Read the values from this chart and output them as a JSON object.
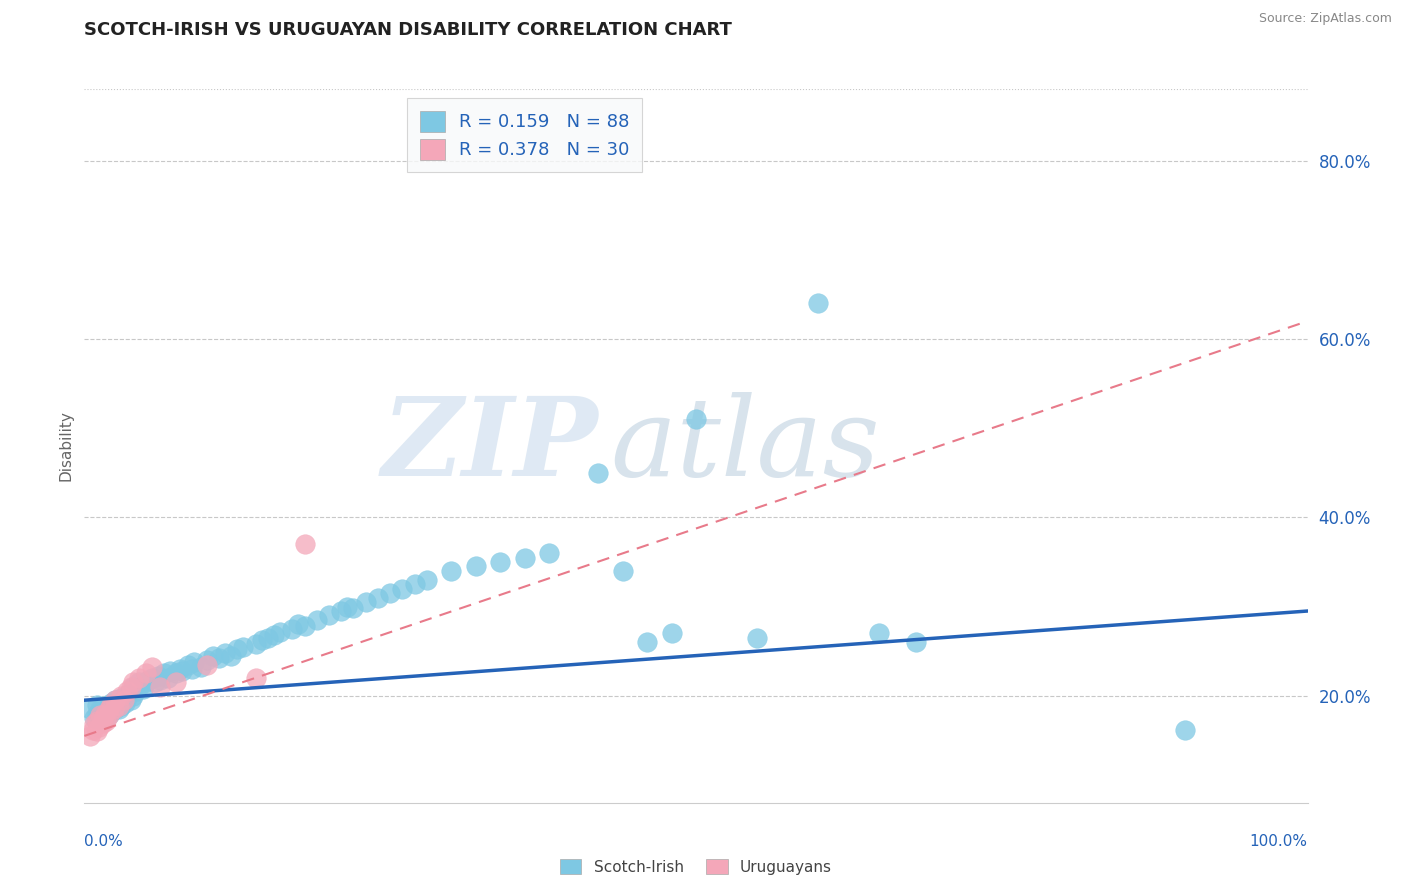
{
  "title": "SCOTCH-IRISH VS URUGUAYAN DISABILITY CORRELATION CHART",
  "source": "Source: ZipAtlas.com",
  "ylabel": "Disability",
  "y_ticks": [
    0.2,
    0.4,
    0.6,
    0.8
  ],
  "y_tick_labels": [
    "20.0%",
    "40.0%",
    "60.0%",
    "80.0%"
  ],
  "x_range": [
    0.0,
    1.0
  ],
  "y_range": [
    0.08,
    0.88
  ],
  "scotch_irish_R": 0.159,
  "scotch_irish_N": 88,
  "uruguayan_R": 0.378,
  "uruguayan_N": 30,
  "scotch_irish_color": "#7ec8e3",
  "uruguayan_color": "#f4a7b9",
  "scotch_irish_line_color": "#2563b8",
  "uruguayan_line_color": "#e87a8a",
  "legend_text_color": "#2563b8",
  "background_color": "#ffffff",
  "grid_color": "#c8c8c8",
  "watermark_zip_color": "#c8d8e8",
  "watermark_atlas_color": "#b8cce0",
  "scotch_irish_x": [
    0.005,
    0.008,
    0.01,
    0.01,
    0.012,
    0.013,
    0.015,
    0.015,
    0.016,
    0.018,
    0.02,
    0.02,
    0.022,
    0.022,
    0.025,
    0.025,
    0.027,
    0.028,
    0.03,
    0.03,
    0.032,
    0.033,
    0.035,
    0.036,
    0.038,
    0.04,
    0.04,
    0.042,
    0.045,
    0.045,
    0.048,
    0.05,
    0.052,
    0.055,
    0.058,
    0.06,
    0.062,
    0.065,
    0.068,
    0.07,
    0.075,
    0.078,
    0.08,
    0.085,
    0.088,
    0.09,
    0.095,
    0.1,
    0.105,
    0.11,
    0.115,
    0.12,
    0.125,
    0.13,
    0.14,
    0.145,
    0.15,
    0.155,
    0.16,
    0.17,
    0.175,
    0.18,
    0.19,
    0.2,
    0.21,
    0.215,
    0.22,
    0.23,
    0.24,
    0.25,
    0.26,
    0.27,
    0.28,
    0.3,
    0.32,
    0.34,
    0.36,
    0.38,
    0.42,
    0.44,
    0.46,
    0.48,
    0.5,
    0.55,
    0.6,
    0.65,
    0.68,
    0.9
  ],
  "scotch_irish_y": [
    0.185,
    0.175,
    0.18,
    0.19,
    0.178,
    0.185,
    0.172,
    0.18,
    0.188,
    0.183,
    0.178,
    0.188,
    0.182,
    0.192,
    0.185,
    0.195,
    0.19,
    0.185,
    0.188,
    0.198,
    0.195,
    0.192,
    0.198,
    0.202,
    0.195,
    0.2,
    0.21,
    0.205,
    0.21,
    0.215,
    0.208,
    0.215,
    0.218,
    0.22,
    0.215,
    0.222,
    0.218,
    0.225,
    0.22,
    0.228,
    0.225,
    0.23,
    0.228,
    0.235,
    0.23,
    0.238,
    0.232,
    0.24,
    0.245,
    0.242,
    0.248,
    0.245,
    0.252,
    0.255,
    0.258,
    0.262,
    0.265,
    0.268,
    0.272,
    0.275,
    0.28,
    0.278,
    0.285,
    0.29,
    0.295,
    0.3,
    0.298,
    0.305,
    0.31,
    0.315,
    0.32,
    0.325,
    0.33,
    0.34,
    0.345,
    0.35,
    0.355,
    0.36,
    0.45,
    0.34,
    0.26,
    0.27,
    0.51,
    0.265,
    0.64,
    0.27,
    0.26,
    0.162
  ],
  "uruguayan_x": [
    0.005,
    0.007,
    0.008,
    0.01,
    0.01,
    0.012,
    0.013,
    0.015,
    0.015,
    0.017,
    0.018,
    0.02,
    0.02,
    0.022,
    0.024,
    0.025,
    0.028,
    0.03,
    0.032,
    0.035,
    0.038,
    0.04,
    0.045,
    0.05,
    0.055,
    0.062,
    0.075,
    0.1,
    0.14,
    0.18
  ],
  "uruguayan_y": [
    0.155,
    0.162,
    0.168,
    0.16,
    0.172,
    0.165,
    0.178,
    0.17,
    0.175,
    0.18,
    0.172,
    0.185,
    0.178,
    0.19,
    0.185,
    0.195,
    0.188,
    0.2,
    0.195,
    0.205,
    0.21,
    0.215,
    0.22,
    0.225,
    0.232,
    0.21,
    0.215,
    0.235,
    0.22,
    0.37
  ],
  "si_line_x0": 0.0,
  "si_line_y0": 0.195,
  "si_line_x1": 1.0,
  "si_line_y1": 0.295,
  "ur_line_x0": 0.0,
  "ur_line_y0": 0.155,
  "ur_line_x1": 1.0,
  "ur_line_y1": 0.62
}
